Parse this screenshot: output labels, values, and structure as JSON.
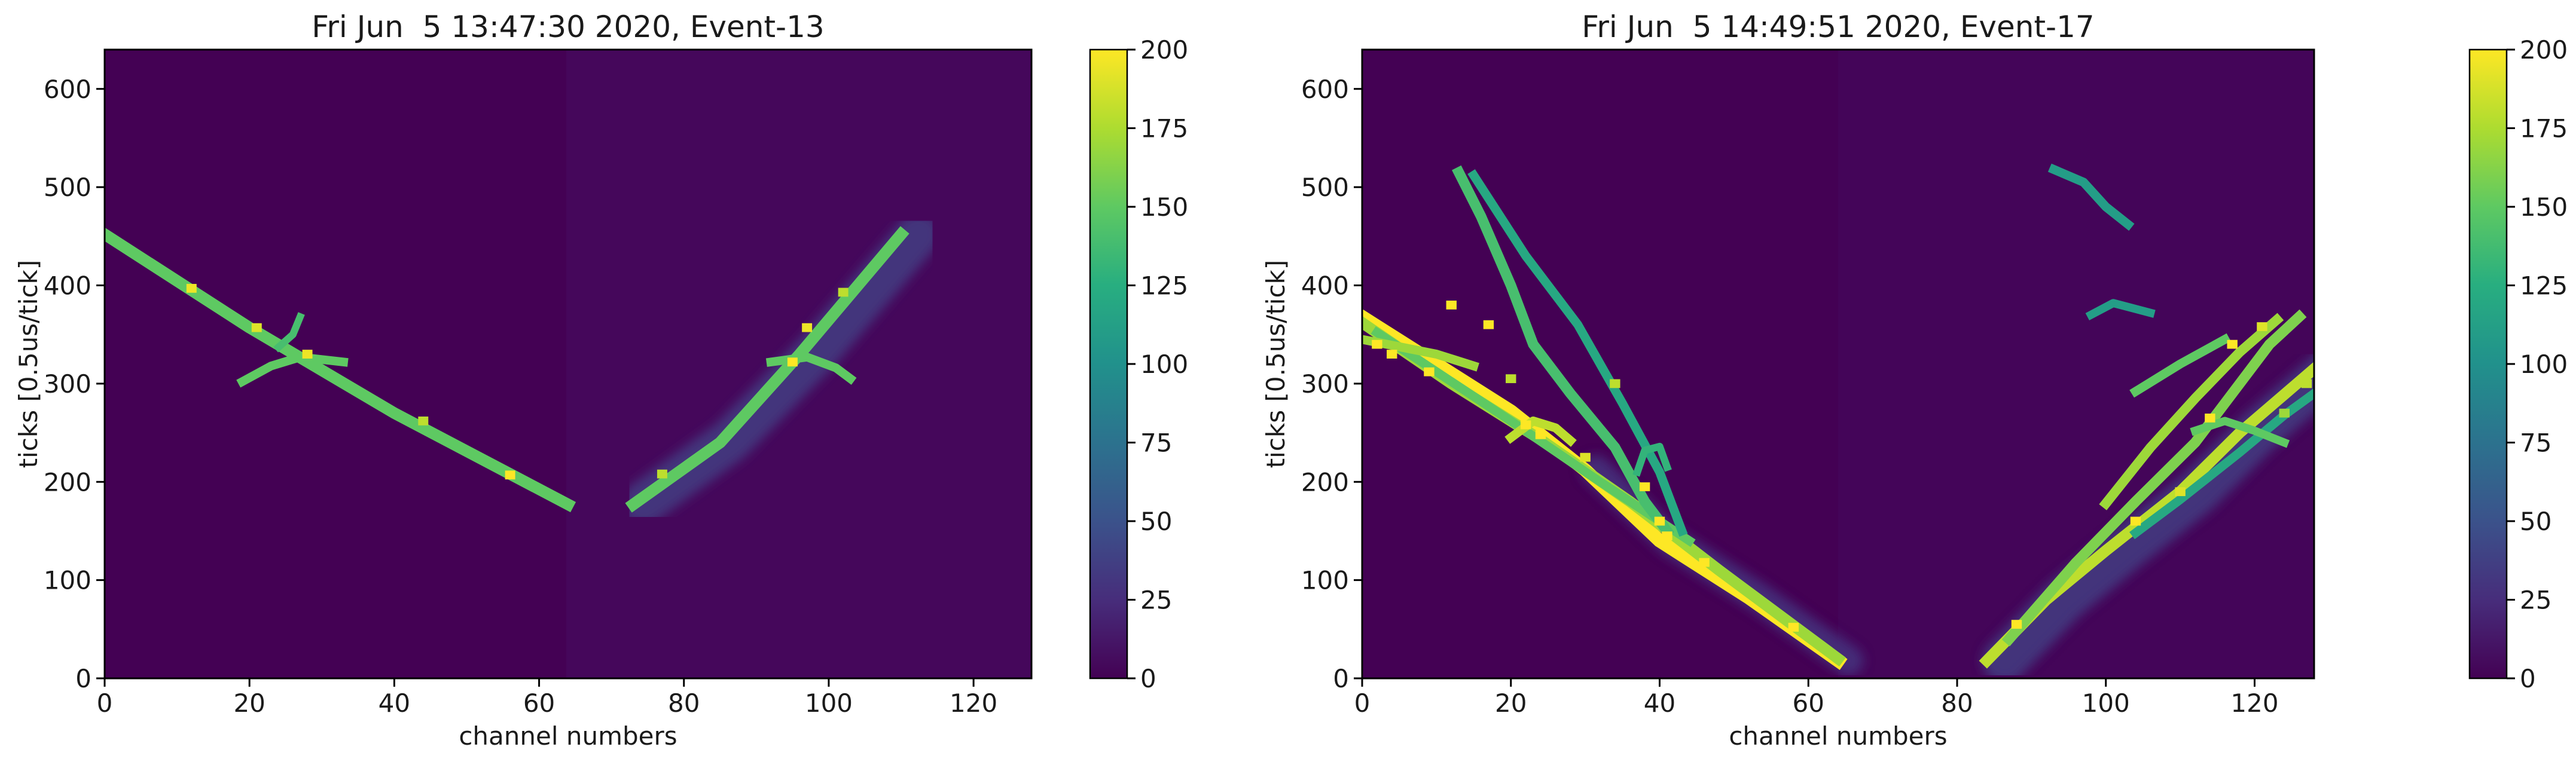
{
  "chart_data": [
    {
      "type": "heatmap",
      "title": "Fri Jun  5 13:47:30 2020, Event-13",
      "xlabel": "channel numbers",
      "ylabel": "ticks [0.5us/tick]",
      "xlim": [
        0,
        128
      ],
      "ylim": [
        0,
        640
      ],
      "xticks": [
        0,
        20,
        40,
        60,
        80,
        100,
        120
      ],
      "yticks": [
        0,
        100,
        200,
        300,
        400,
        500,
        600
      ],
      "colorbar": {
        "min": 0,
        "max": 200,
        "ticks": [
          0,
          25,
          50,
          75,
          100,
          125,
          150,
          175,
          200
        ],
        "colormap": "viridis"
      },
      "background_color": "#440154",
      "tracks": [
        {
          "points": [
            [
              0,
              452
            ],
            [
              20,
              357
            ],
            [
              40,
              270
            ],
            [
              64,
              177
            ]
          ],
          "value": 150,
          "width": 1.6
        },
        {
          "points": [
            [
              73,
              177
            ],
            [
              85,
              240
            ],
            [
              96,
              330
            ],
            [
              110,
              452
            ]
          ],
          "value": 150,
          "width": 1.6
        },
        {
          "points": [
            [
              19,
              302
            ],
            [
              23,
              318
            ],
            [
              27,
              327
            ],
            [
              33,
              322
            ]
          ],
          "value": 150,
          "width": 1.2
        },
        {
          "points": [
            [
              24,
              337
            ],
            [
              26,
              350
            ],
            [
              27,
              368
            ]
          ],
          "value": 140,
          "width": 1.0
        },
        {
          "points": [
            [
              92,
              322
            ],
            [
              97,
              327
            ],
            [
              101,
              316
            ],
            [
              103,
              305
            ]
          ],
          "value": 150,
          "width": 1.2
        }
      ],
      "hotspots": [
        {
          "x": 12,
          "y": 397,
          "value": 195
        },
        {
          "x": 21,
          "y": 357,
          "value": 190
        },
        {
          "x": 28,
          "y": 330,
          "value": 195
        },
        {
          "x": 44,
          "y": 262,
          "value": 180
        },
        {
          "x": 56,
          "y": 207,
          "value": 200
        },
        {
          "x": 77,
          "y": 208,
          "value": 180
        },
        {
          "x": 95,
          "y": 322,
          "value": 200
        },
        {
          "x": 97,
          "y": 357,
          "value": 195
        },
        {
          "x": 102,
          "y": 393,
          "value": 180
        }
      ],
      "halos": [
        {
          "points": [
            [
              72,
              178
            ],
            [
              84,
              242
            ],
            [
              96,
              332
            ],
            [
              110,
              452
            ]
          ],
          "value": 35,
          "width": 6,
          "offset": 2.4
        }
      ]
    },
    {
      "type": "heatmap",
      "title": "Fri Jun  5 14:49:51 2020, Event-17",
      "xlabel": "channel numbers",
      "ylabel": "ticks [0.5us/tick]",
      "xlim": [
        0,
        128
      ],
      "ylim": [
        0,
        640
      ],
      "xticks": [
        0,
        20,
        40,
        60,
        80,
        100,
        120
      ],
      "yticks": [
        0,
        100,
        200,
        300,
        400,
        500,
        600
      ],
      "colorbar": {
        "min": 0,
        "max": 200,
        "ticks": [
          0,
          25,
          50,
          75,
          100,
          125,
          150,
          175,
          200
        ],
        "colormap": "viridis"
      },
      "background_color": "#440154",
      "tracks": [
        {
          "points": [
            [
              0,
              368
            ],
            [
              10,
              320
            ],
            [
              20,
              272
            ],
            [
              30,
              212
            ],
            [
              40,
              140
            ],
            [
              52,
              82
            ],
            [
              64,
              18
            ]
          ],
          "value": 200,
          "width": 1.8
        },
        {
          "points": [
            [
              0,
              362
            ],
            [
              12,
              300
            ],
            [
              24,
              243
            ],
            [
              36,
              180
            ],
            [
              48,
              110
            ],
            [
              64,
              20
            ]
          ],
          "value": 170,
          "width": 1.5
        },
        {
          "points": [
            [
              2,
              352
            ],
            [
              10,
              312
            ],
            [
              20,
              262
            ],
            [
              32,
              200
            ],
            [
              44,
              140
            ]
          ],
          "value": 150,
          "width": 1.2
        },
        {
          "points": [
            [
              0,
              345
            ],
            [
              10,
              330
            ],
            [
              15,
              318
            ]
          ],
          "value": 170,
          "width": 1.2
        },
        {
          "points": [
            [
              13,
              515
            ],
            [
              16,
              470
            ],
            [
              20,
              400
            ],
            [
              23,
              340
            ],
            [
              28,
              290
            ],
            [
              34,
              235
            ],
            [
              38,
              180
            ],
            [
              41,
              150
            ]
          ],
          "value": 140,
          "width": 1.4
        },
        {
          "points": [
            [
              15,
              512
            ],
            [
              22,
              430
            ],
            [
              29,
              360
            ],
            [
              35,
              280
            ],
            [
              40,
              210
            ],
            [
              43,
              150
            ]
          ],
          "value": 120,
          "width": 1.2
        },
        {
          "points": [
            [
              20,
              245
            ],
            [
              23,
              262
            ],
            [
              26,
              255
            ],
            [
              28,
              242
            ]
          ],
          "value": 180,
          "width": 1.2
        },
        {
          "points": [
            [
              37,
              210
            ],
            [
              38,
              232
            ],
            [
              40,
              236
            ],
            [
              41,
              215
            ]
          ],
          "value": 130,
          "width": 1.0
        },
        {
          "points": [
            [
              84,
              18
            ],
            [
              92,
              80
            ],
            [
              100,
              130
            ],
            [
              110,
              190
            ],
            [
              118,
              250
            ],
            [
              128,
              315
            ]
          ],
          "value": 180,
          "width": 1.5
        },
        {
          "points": [
            [
              87,
              40
            ],
            [
              96,
              118
            ],
            [
              104,
              180
            ],
            [
              112,
              240
            ],
            [
              122,
              340
            ],
            [
              126,
              368
            ]
          ],
          "value": 160,
          "width": 1.4
        },
        {
          "points": [
            [
              100,
              178
            ],
            [
              106,
              235
            ],
            [
              112,
              285
            ],
            [
              118,
              332
            ],
            [
              123,
              365
            ]
          ],
          "value": 170,
          "width": 1.3
        },
        {
          "points": [
            [
              104,
              148
            ],
            [
              110,
              182
            ],
            [
              118,
              230
            ],
            [
              124,
              268
            ],
            [
              128,
              290
            ]
          ],
          "value": 120,
          "width": 1.2
        },
        {
          "points": [
            [
              104,
              292
            ],
            [
              110,
              320
            ],
            [
              116,
              345
            ]
          ],
          "value": 150,
          "width": 1.2
        },
        {
          "points": [
            [
              93,
              518
            ],
            [
              97,
              505
            ],
            [
              100,
              480
            ],
            [
              103,
              462
            ]
          ],
          "value": 110,
          "width": 1.2
        },
        {
          "points": [
            [
              98,
              370
            ],
            [
              101,
              382
            ],
            [
              106,
              372
            ]
          ],
          "value": 110,
          "width": 1.1
        },
        {
          "points": [
            [
              112,
              252
            ],
            [
              116,
              262
            ],
            [
              120,
              252
            ],
            [
              124,
              240
            ]
          ],
          "value": 150,
          "width": 1.1
        }
      ],
      "hotspots": [
        {
          "x": 2,
          "y": 340,
          "value": 200
        },
        {
          "x": 4,
          "y": 330,
          "value": 200
        },
        {
          "x": 9,
          "y": 312,
          "value": 200
        },
        {
          "x": 12,
          "y": 380,
          "value": 200
        },
        {
          "x": 17,
          "y": 360,
          "value": 200
        },
        {
          "x": 20,
          "y": 305,
          "value": 180
        },
        {
          "x": 22,
          "y": 258,
          "value": 200
        },
        {
          "x": 24,
          "y": 248,
          "value": 200
        },
        {
          "x": 30,
          "y": 225,
          "value": 190
        },
        {
          "x": 34,
          "y": 300,
          "value": 180
        },
        {
          "x": 38,
          "y": 195,
          "value": 200
        },
        {
          "x": 40,
          "y": 160,
          "value": 200
        },
        {
          "x": 41,
          "y": 145,
          "value": 200
        },
        {
          "x": 46,
          "y": 118,
          "value": 200
        },
        {
          "x": 58,
          "y": 52,
          "value": 200
        },
        {
          "x": 88,
          "y": 55,
          "value": 200
        },
        {
          "x": 104,
          "y": 160,
          "value": 200
        },
        {
          "x": 110,
          "y": 190,
          "value": 190
        },
        {
          "x": 114,
          "y": 265,
          "value": 200
        },
        {
          "x": 117,
          "y": 340,
          "value": 200
        },
        {
          "x": 121,
          "y": 358,
          "value": 190
        },
        {
          "x": 127,
          "y": 300,
          "value": 180
        },
        {
          "x": 124,
          "y": 270,
          "value": 170
        }
      ],
      "halos": [
        {
          "points": [
            [
              84,
              18
            ],
            [
              92,
              80
            ],
            [
              100,
              130
            ],
            [
              110,
              190
            ],
            [
              118,
              250
            ],
            [
              128,
              315
            ]
          ],
          "value": 35,
          "width": 6,
          "offset": 2.4
        },
        {
          "points": [
            [
              64,
              18
            ],
            [
              52,
              82
            ],
            [
              40,
              140
            ],
            [
              30,
              212
            ]
          ],
          "value": 30,
          "width": 4,
          "offset": 1.4
        }
      ]
    }
  ]
}
